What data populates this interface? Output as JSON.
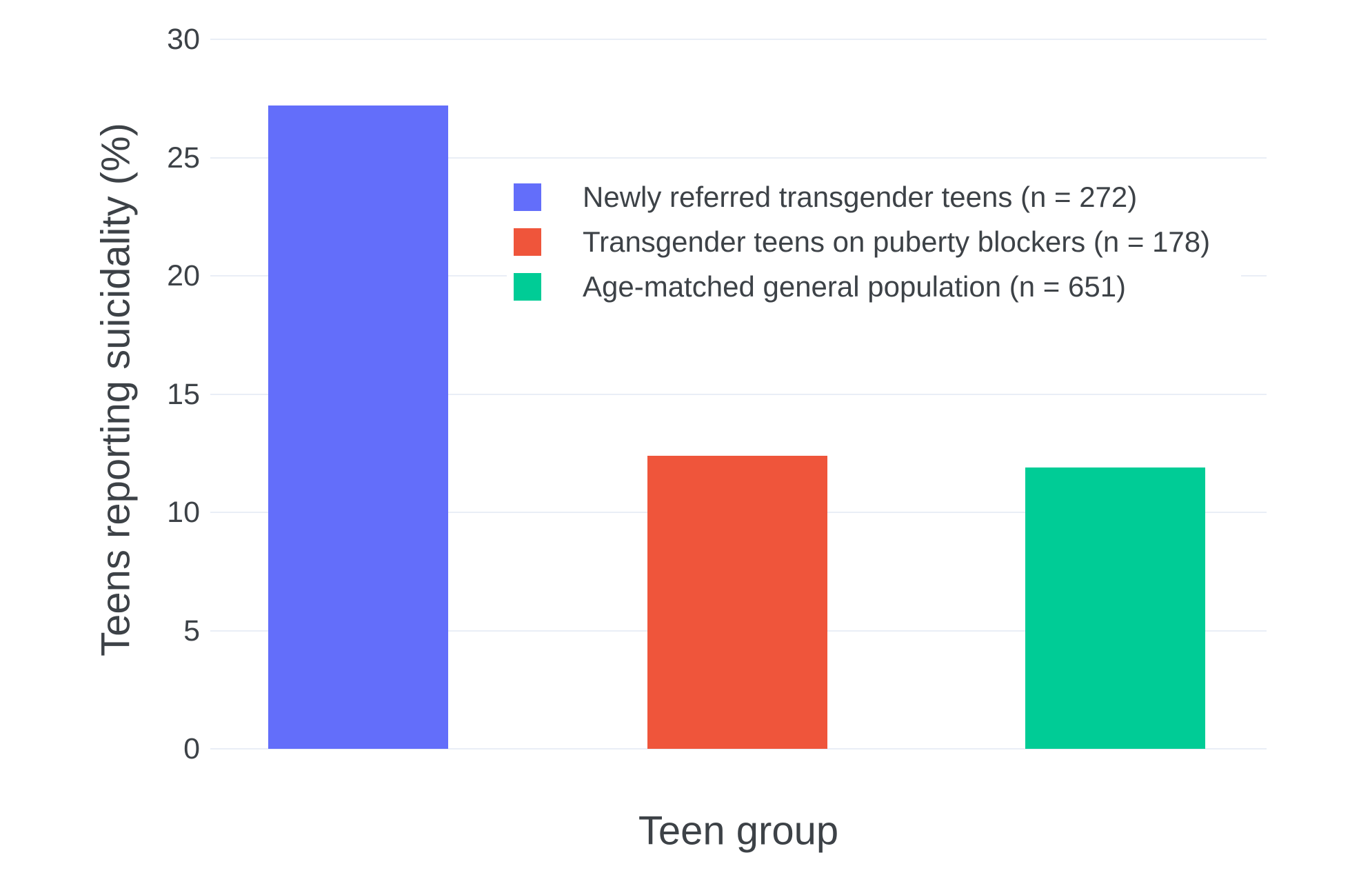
{
  "chart_data": {
    "type": "bar",
    "title": "",
    "xlabel": "Teen group",
    "ylabel": "Teens reporting suicidality (%)",
    "categories": [
      "Newly referred transgender teens (n = 272)",
      "Transgender teens on puberty blockers (n = 178)",
      "Age-matched general population (n = 651)"
    ],
    "values": [
      27.2,
      12.4,
      11.9
    ],
    "colors": [
      "#636efa",
      "#ef553b",
      "#00cc96"
    ],
    "yticks": [
      0,
      5,
      10,
      15,
      20,
      25,
      30
    ],
    "ylim": [
      0,
      30
    ],
    "grid": true,
    "legend_position": "inside-top-center",
    "legend_entries": [
      "Newly referred transgender teens (n = 272)",
      "Transgender teens on puberty blockers (n = 178)",
      "Age-matched general population (n = 651)"
    ]
  },
  "colors": {
    "background": "#ffffff",
    "gridline": "#e9eef6",
    "text": "#3d4247"
  }
}
